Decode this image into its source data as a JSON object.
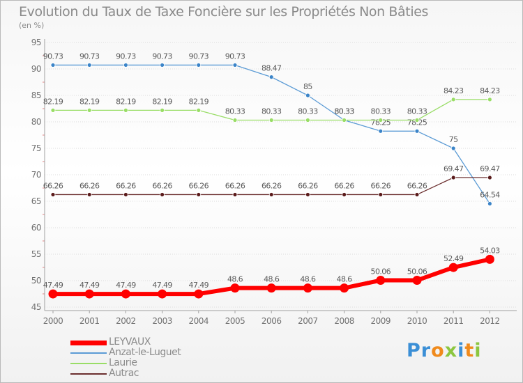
{
  "chart_data": {
    "type": "line",
    "title": "Evolution du Taux de Taxe Foncière sur les Propriétés Non Bâties",
    "subtitle": "(en %)",
    "xlabel": "",
    "ylabel": "",
    "ylim": [
      45,
      95
    ],
    "yticks": [
      45,
      50,
      55,
      60,
      65,
      70,
      75,
      80,
      85,
      90,
      95
    ],
    "categories": [
      "2000",
      "2001",
      "2002",
      "2003",
      "2004",
      "2005",
      "2006",
      "2007",
      "2008",
      "2009",
      "2010",
      "2011",
      "2012"
    ],
    "grid": true,
    "legend_position": "bottom-left",
    "series": [
      {
        "name": "LEYVAUX",
        "color": "#ff0000",
        "values": [
          47.49,
          47.49,
          47.49,
          47.49,
          47.49,
          48.6,
          48.6,
          48.6,
          48.6,
          50.06,
          50.06,
          52.49,
          54.03
        ],
        "labels": [
          "47.49",
          "47.49",
          "47.49",
          "47.49",
          "47.49",
          "48.6",
          "48.6",
          "48.6",
          "48.6",
          "50.06",
          "50.06",
          "52.49",
          "54.03"
        ]
      },
      {
        "name": "Anzat-le-Luguet",
        "color": "#5b9bd5",
        "values": [
          90.73,
          90.73,
          90.73,
          90.73,
          90.73,
          90.73,
          88.47,
          85,
          80.33,
          78.25,
          78.25,
          75,
          64.54
        ],
        "labels": [
          "90.73",
          "90.73",
          "90.73",
          "90.73",
          "90.73",
          "90.73",
          "88.47",
          "85",
          "80.33",
          "78.25",
          "78.25",
          "75",
          "64.54"
        ]
      },
      {
        "name": "Laurie",
        "color": "#99dd66",
        "values": [
          82.19,
          82.19,
          82.19,
          82.19,
          82.19,
          80.33,
          80.33,
          80.33,
          80.33,
          80.33,
          80.33,
          84.23,
          84.23
        ],
        "labels": [
          "82.19",
          "82.19",
          "82.19",
          "82.19",
          "82.19",
          "80.33",
          "80.33",
          "80.33",
          "80.33",
          "80.33",
          "80.33",
          "84.23",
          "84.23"
        ]
      },
      {
        "name": "Autrac",
        "color": "#6b2e2e",
        "values": [
          66.26,
          66.26,
          66.26,
          66.26,
          66.26,
          66.26,
          66.26,
          66.26,
          66.26,
          66.26,
          66.26,
          69.47,
          69.47
        ],
        "labels": [
          "66.26",
          "66.26",
          "66.26",
          "66.26",
          "66.26",
          "66.26",
          "66.26",
          "66.26",
          "66.26",
          "66.26",
          "66.26",
          "69.47",
          "69.47"
        ]
      }
    ]
  },
  "logo": {
    "text": "Proxiti",
    "letters": [
      {
        "char": "P",
        "color": "#3b8fd6"
      },
      {
        "char": "r",
        "color": "#3b8fd6"
      },
      {
        "char": "o",
        "color": "#f08a1c"
      },
      {
        "char": "x",
        "color": "#8cc63f"
      },
      {
        "char": "i",
        "color": "#3b8fd6"
      },
      {
        "char": "t",
        "color": "#f08a1c"
      },
      {
        "char": "i",
        "color": "#8cc63f"
      }
    ]
  }
}
